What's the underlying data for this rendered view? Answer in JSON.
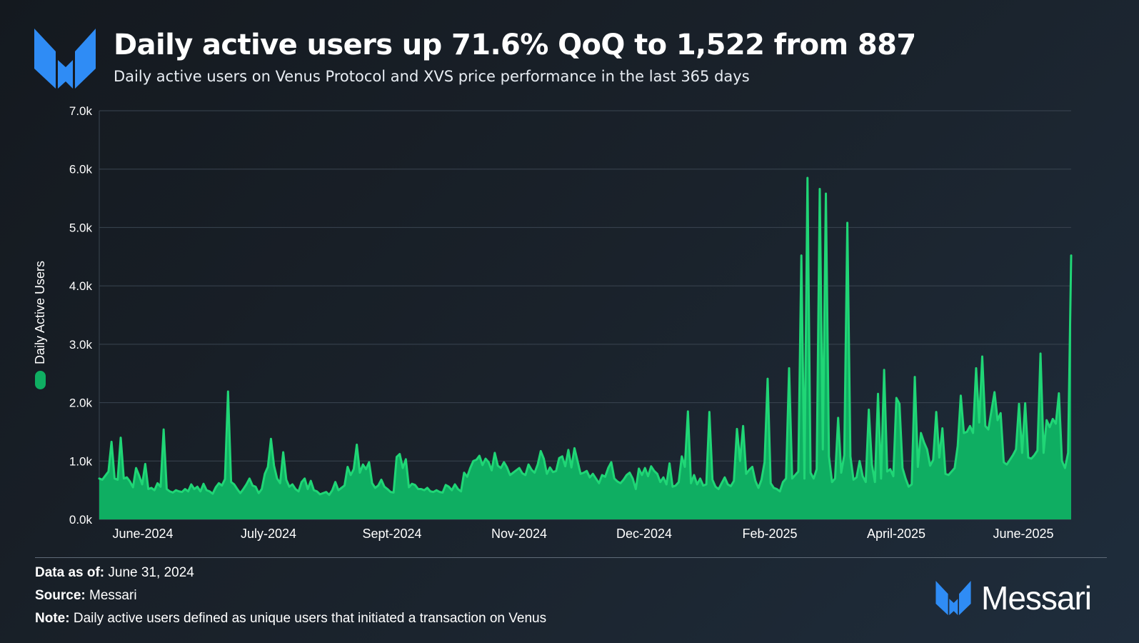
{
  "header": {
    "title": "Daily active users up 71.6% QoQ to 1,522 from 887",
    "subtitle": "Daily active users on Venus Protocol and XVS price performance in the last 365 days"
  },
  "footer": {
    "data_as_of_label": "Data as of:",
    "data_as_of_value": "June 31, 2024",
    "source_label": "Source:",
    "source_value": "Messari",
    "note_label": "Note:",
    "note_value": "Daily active users defined as unique users that initiated a transaction on Venus"
  },
  "brand": {
    "name": "Messari"
  },
  "colors": {
    "series": "#0fae62",
    "line": "#20d676",
    "logo": "#2f8cf5",
    "grid": "#3a4551"
  },
  "chart_data": {
    "type": "area",
    "title": "Daily active users up 71.6% QoQ to 1,522 from 887",
    "ylabel": "Daily Active Users",
    "xlabel": "",
    "legend": [
      {
        "name": "Daily Active Users",
        "position": "left"
      }
    ],
    "ylim": [
      0,
      7000
    ],
    "y_ticks": [
      0,
      1000,
      2000,
      3000,
      4000,
      5000,
      6000,
      7000
    ],
    "y_tick_labels": [
      "0.0k",
      "1.0k",
      "2.0k",
      "3.0k",
      "4.0k",
      "5.0k",
      "6.0k",
      "7.0k"
    ],
    "x_range_days": [
      0,
      364
    ],
    "x_ticks": [
      {
        "day": 22,
        "label": "June-2024"
      },
      {
        "day": 82,
        "label": "July-2024"
      },
      {
        "day": 141,
        "label": "Sept-2024"
      },
      {
        "day": 200,
        "label": "Nov-2024"
      },
      {
        "day": 259,
        "label": "Dec-2024"
      },
      {
        "day": 318,
        "label": "Feb-2025"
      },
      {
        "day": 262,
        "label": "April-2025"
      },
      {
        "day": 321,
        "label": "June-2025"
      }
    ],
    "series": [
      {
        "name": "Daily Active Users",
        "values": [
          700,
          680,
          750,
          820,
          1330,
          700,
          680,
          1400,
          700,
          720,
          650,
          550,
          880,
          750,
          600,
          950,
          520,
          540,
          500,
          620,
          560,
          1540,
          520,
          480,
          460,
          500,
          480,
          470,
          520,
          480,
          600,
          520,
          560,
          480,
          610,
          500,
          480,
          440,
          550,
          620,
          580,
          690,
          2190,
          640,
          600,
          520,
          450,
          520,
          600,
          700,
          580,
          560,
          450,
          520,
          780,
          900,
          1380,
          920,
          700,
          620,
          1150,
          680,
          560,
          600,
          520,
          480,
          640,
          700,
          520,
          660,
          500,
          480,
          430,
          450,
          470,
          420,
          500,
          640,
          500,
          540,
          580,
          900,
          760,
          860,
          1280,
          800,
          940,
          860,
          980,
          620,
          540,
          580,
          680,
          560,
          520,
          470,
          460,
          1070,
          1120,
          880,
          1030,
          550,
          610,
          590,
          520,
          520,
          500,
          540,
          480,
          470,
          500,
          470,
          460,
          590,
          560,
          500,
          600,
          520,
          480,
          800,
          730,
          880,
          1000,
          1020,
          1090,
          930,
          1040,
          980,
          840,
          1140,
          920,
          880,
          980,
          890,
          760,
          800,
          840,
          880,
          790,
          760,
          940,
          850,
          800,
          940,
          1170,
          1040,
          780,
          890,
          810,
          830,
          1050,
          1080,
          910,
          1190,
          890,
          1220,
          1000,
          780,
          800,
          830,
          720,
          780,
          700,
          620,
          760,
          730,
          880,
          980,
          700,
          650,
          620,
          680,
          760,
          800,
          700,
          520,
          870,
          760,
          880,
          740,
          910,
          830,
          780,
          640,
          720,
          600,
          960,
          560,
          580,
          640,
          1080,
          900,
          1850,
          620,
          760,
          600,
          700,
          580,
          600,
          1840,
          680,
          560,
          520,
          620,
          720,
          600,
          570,
          660,
          1550,
          1000,
          1600,
          780,
          850,
          900,
          660,
          540,
          680,
          980,
          2410,
          620,
          540,
          520,
          480,
          640,
          700,
          2590,
          700,
          760,
          820,
          4520,
          700,
          5850,
          800,
          700,
          860,
          5660,
          1200,
          5580,
          1080,
          640,
          700,
          1740,
          800,
          1100,
          5080,
          1080,
          680,
          720,
          1000,
          740,
          640,
          1880,
          940,
          640,
          2150,
          700,
          2560,
          820,
          860,
          740,
          2080,
          1980,
          880,
          700,
          560,
          600,
          2440,
          900,
          1480,
          1320,
          1200,
          920,
          1020,
          1840,
          1060,
          1560,
          780,
          760,
          820,
          880,
          1260,
          2120,
          1480,
          1500,
          1600,
          1480,
          2590,
          1660,
          2790,
          1600,
          1540,
          1860,
          2180,
          1700,
          1820,
          980,
          940,
          1020,
          1100,
          1200,
          1980,
          1140,
          1990,
          1060,
          1040,
          1100,
          1180,
          2840,
          1140,
          1700,
          1580,
          1720,
          1640,
          2160,
          1000,
          880,
          1140,
          4520
        ]
      }
    ]
  }
}
